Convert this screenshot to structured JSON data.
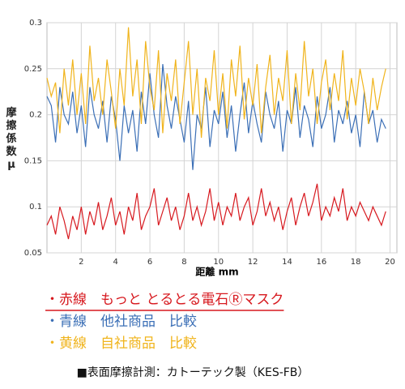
{
  "chart_data": {
    "type": "line",
    "y_label": "摩擦係数μ",
    "x_label": "距離 mm",
    "xlim": [
      0,
      20.4
    ],
    "xticks": [
      2,
      4,
      6,
      8,
      10,
      12,
      14,
      16,
      18,
      20
    ],
    "ylim": [
      0.05,
      0.3
    ],
    "yticks": [
      0.05,
      0.1,
      0.15,
      0.2,
      0.25,
      0.3
    ],
    "grid": true,
    "x": [
      0,
      0.25,
      0.5,
      0.75,
      1,
      1.25,
      1.5,
      1.75,
      2,
      2.25,
      2.5,
      2.75,
      3,
      3.25,
      3.5,
      3.75,
      4,
      4.25,
      4.5,
      4.75,
      5,
      5.25,
      5.5,
      5.75,
      6,
      6.25,
      6.5,
      6.75,
      7,
      7.25,
      7.5,
      7.75,
      8,
      8.25,
      8.5,
      8.75,
      9,
      9.25,
      9.5,
      9.75,
      10,
      10.25,
      10.5,
      10.75,
      11,
      11.25,
      11.5,
      11.75,
      12,
      12.25,
      12.5,
      12.75,
      13,
      13.25,
      13.5,
      13.75,
      14,
      14.25,
      14.5,
      14.75,
      15,
      15.25,
      15.5,
      15.75,
      16,
      16.25,
      16.5,
      16.75,
      17,
      17.25,
      17.5,
      17.75,
      18,
      18.25,
      18.5,
      18.75,
      19,
      19.25,
      19.5,
      19.75
    ],
    "series": [
      {
        "name": "・赤線　もっと とるとる電石Ⓡマスク",
        "color": "#d7191f",
        "values": [
          0.08,
          0.09,
          0.07,
          0.1,
          0.085,
          0.065,
          0.09,
          0.075,
          0.1,
          0.07,
          0.095,
          0.08,
          0.105,
          0.075,
          0.09,
          0.11,
          0.08,
          0.095,
          0.07,
          0.1,
          0.085,
          0.115,
          0.075,
          0.09,
          0.1,
          0.12,
          0.08,
          0.095,
          0.11,
          0.085,
          0.1,
          0.075,
          0.09,
          0.115,
          0.085,
          0.1,
          0.08,
          0.095,
          0.12,
          0.085,
          0.105,
          0.08,
          0.1,
          0.09,
          0.115,
          0.085,
          0.1,
          0.11,
          0.08,
          0.095,
          0.12,
          0.09,
          0.105,
          0.085,
          0.1,
          0.075,
          0.095,
          0.11,
          0.08,
          0.1,
          0.115,
          0.09,
          0.105,
          0.125,
          0.085,
          0.1,
          0.09,
          0.11,
          0.095,
          0.12,
          0.085,
          0.1,
          0.09,
          0.105,
          0.095,
          0.085,
          0.1,
          0.09,
          0.08,
          0.095
        ]
      },
      {
        "name": "・青線　他社商品　比較",
        "color": "#3b6fb6",
        "values": [
          0.22,
          0.21,
          0.17,
          0.23,
          0.2,
          0.19,
          0.225,
          0.18,
          0.21,
          0.165,
          0.23,
          0.2,
          0.185,
          0.215,
          0.17,
          0.22,
          0.195,
          0.15,
          0.21,
          0.18,
          0.205,
          0.16,
          0.225,
          0.19,
          0.245,
          0.2,
          0.175,
          0.255,
          0.21,
          0.185,
          0.22,
          0.195,
          0.17,
          0.215,
          0.14,
          0.2,
          0.185,
          0.23,
          0.165,
          0.205,
          0.19,
          0.225,
          0.175,
          0.21,
          0.16,
          0.2,
          0.235,
          0.18,
          0.215,
          0.19,
          0.17,
          0.225,
          0.2,
          0.185,
          0.215,
          0.16,
          0.205,
          0.19,
          0.23,
          0.175,
          0.21,
          0.195,
          0.165,
          0.22,
          0.185,
          0.2,
          0.23,
          0.17,
          0.205,
          0.19,
          0.215,
          0.18,
          0.2,
          0.165,
          0.225,
          0.19,
          0.205,
          0.17,
          0.195,
          0.185
        ]
      },
      {
        "name": "・黄線　自社商品　比較",
        "color": "#f0b41c",
        "values": [
          0.24,
          0.22,
          0.235,
          0.18,
          0.25,
          0.21,
          0.26,
          0.2,
          0.245,
          0.19,
          0.275,
          0.215,
          0.24,
          0.2,
          0.26,
          0.225,
          0.185,
          0.25,
          0.21,
          0.295,
          0.22,
          0.26,
          0.19,
          0.28,
          0.23,
          0.205,
          0.27,
          0.18,
          0.245,
          0.215,
          0.26,
          0.19,
          0.235,
          0.28,
          0.2,
          0.25,
          0.175,
          0.24,
          0.215,
          0.27,
          0.2,
          0.245,
          0.185,
          0.26,
          0.22,
          0.275,
          0.195,
          0.24,
          0.21,
          0.255,
          0.18,
          0.23,
          0.265,
          0.2,
          0.24,
          0.215,
          0.27,
          0.19,
          0.245,
          0.205,
          0.28,
          0.22,
          0.25,
          0.19,
          0.235,
          0.26,
          0.205,
          0.245,
          0.215,
          0.27,
          0.195,
          0.24,
          0.21,
          0.25,
          0.225,
          0.19,
          0.24,
          0.205,
          0.23,
          0.25
        ]
      }
    ],
    "note": "■表面摩擦計測：カトーテック製（KES-FB）"
  }
}
